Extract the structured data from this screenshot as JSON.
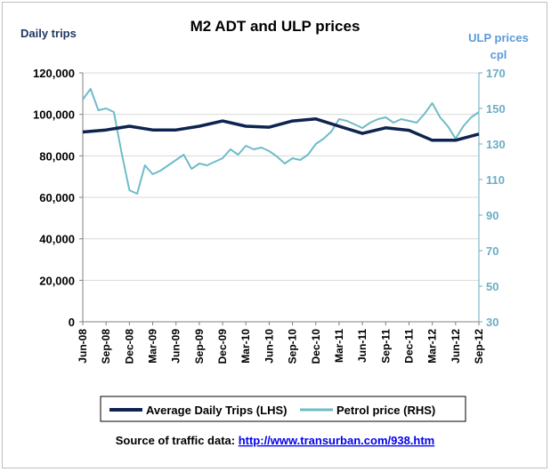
{
  "chart_data": {
    "type": "line",
    "title": "M2 ADT and ULP prices",
    "ylabel_left": "Daily trips",
    "ylabel_right_line1": "ULP prices",
    "ylabel_right_line2": "cpl",
    "left_axis": {
      "ylim": [
        0,
        120000
      ],
      "ticks": [
        0,
        20000,
        40000,
        60000,
        80000,
        100000,
        120000
      ],
      "tick_labels": [
        "0",
        "20,000",
        "40,000",
        "60,000",
        "80,000",
        "100,000",
        "120,000"
      ]
    },
    "right_axis": {
      "ylim": [
        30,
        170
      ],
      "ticks": [
        30,
        50,
        70,
        90,
        110,
        130,
        150,
        170
      ],
      "tick_labels": [
        "30",
        "50",
        "70",
        "90",
        "110",
        "130",
        "150",
        "170"
      ]
    },
    "x_tick_labels": [
      "Jun-08",
      "Sep-08",
      "Dec-08",
      "Mar-09",
      "Jun-09",
      "Sep-09",
      "Dec-09",
      "Mar-10",
      "Jun-10",
      "Sep-10",
      "Dec-10",
      "Mar-11",
      "Jun-11",
      "Sep-11",
      "Dec-11",
      "Mar-12",
      "Jun-12",
      "Sep-12"
    ],
    "grid": true,
    "legend_position": "bottom",
    "series": [
      {
        "name": "Average Daily Trips (LHS)",
        "axis": "left",
        "color": "#0f2350",
        "x": [
          "Jun-08",
          "Sep-08",
          "Dec-08",
          "Mar-09",
          "Jun-09",
          "Sep-09",
          "Dec-09",
          "Mar-10",
          "Jun-10",
          "Sep-10",
          "Dec-10",
          "Mar-11",
          "Jun-11",
          "Sep-11",
          "Dec-11",
          "Mar-12",
          "Jun-12",
          "Sep-12"
        ],
        "values": [
          91500,
          92500,
          94300,
          92500,
          92500,
          94300,
          96800,
          94300,
          93800,
          96800,
          97800,
          94300,
          90800,
          93500,
          92300,
          87500,
          87500,
          90500
        ]
      },
      {
        "name": "Petrol price (RHS)",
        "axis": "right",
        "color": "#6fbcc8",
        "x": [
          "Jun-08",
          "Jul-08",
          "Aug-08",
          "Sep-08",
          "Oct-08",
          "Nov-08",
          "Dec-08",
          "Jan-09",
          "Feb-09",
          "Mar-09",
          "Apr-09",
          "May-09",
          "Jun-09",
          "Jul-09",
          "Aug-09",
          "Sep-09",
          "Oct-09",
          "Nov-09",
          "Dec-09",
          "Jan-10",
          "Feb-10",
          "Mar-10",
          "Apr-10",
          "May-10",
          "Jun-10",
          "Jul-10",
          "Aug-10",
          "Sep-10",
          "Oct-10",
          "Nov-10",
          "Dec-10",
          "Jan-11",
          "Feb-11",
          "Mar-11",
          "Apr-11",
          "May-11",
          "Jun-11",
          "Jul-11",
          "Aug-11",
          "Sep-11",
          "Oct-11",
          "Nov-11",
          "Dec-11",
          "Jan-12",
          "Feb-12",
          "Mar-12",
          "Apr-12",
          "May-12",
          "Jun-12",
          "Jul-12",
          "Aug-12",
          "Sep-12"
        ],
        "values": [
          155,
          161,
          149,
          150,
          148,
          125,
          104,
          102,
          118,
          113,
          115,
          118,
          121,
          124,
          116,
          119,
          118,
          120,
          122,
          127,
          124,
          129,
          127,
          128,
          126,
          123,
          119,
          122,
          121,
          124,
          130,
          133,
          137,
          144,
          143,
          141,
          139,
          142,
          144,
          145,
          142,
          144,
          143,
          142,
          147,
          153,
          145,
          140,
          133,
          140,
          145,
          148
        ]
      }
    ]
  },
  "source": {
    "label": "Source of traffic data: ",
    "link": "http://www.transurban.com/938.htm"
  }
}
